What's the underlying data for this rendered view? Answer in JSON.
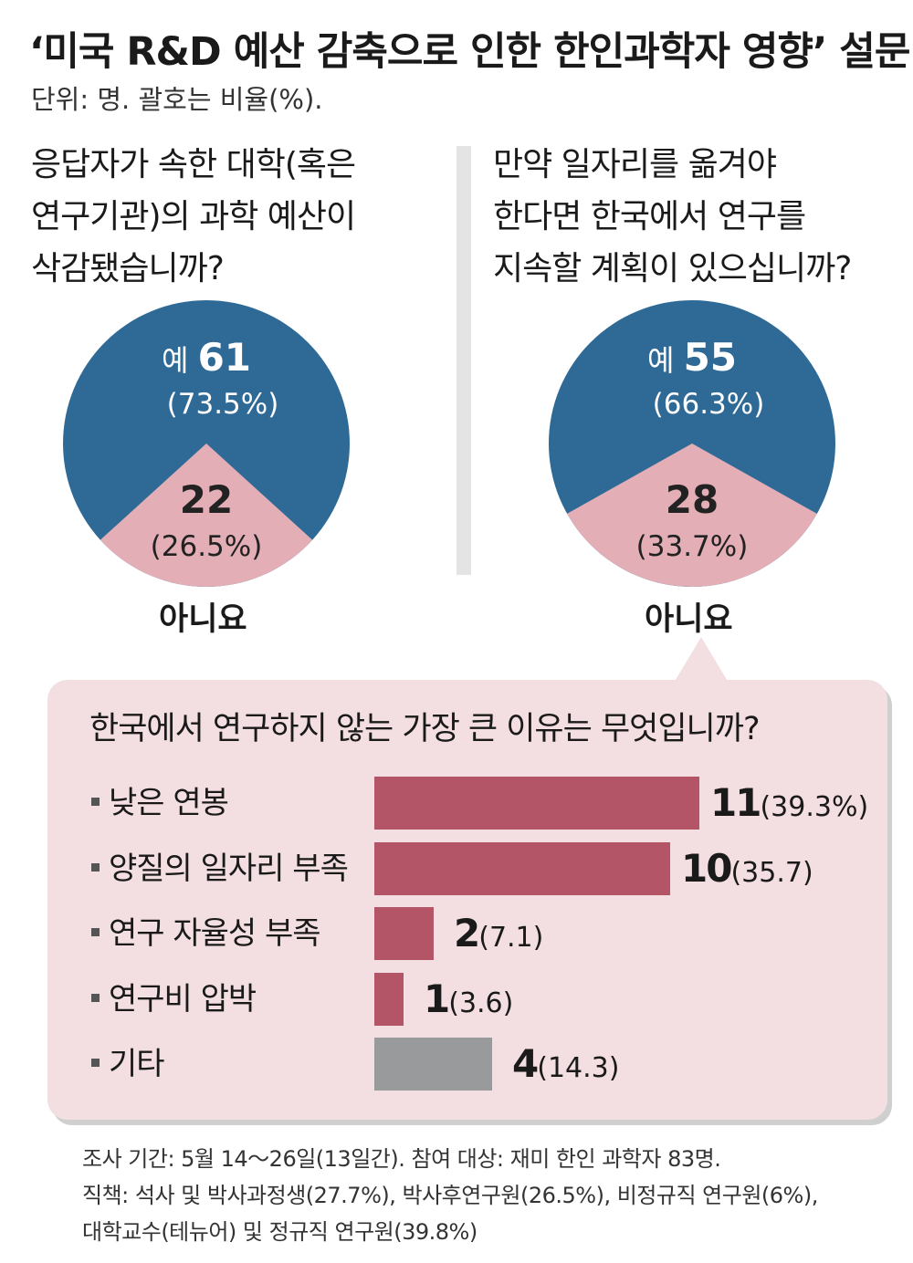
{
  "header": {
    "title": "‘미국 R&D 예산 감축으로 인한 한인과학자 영향’ 설문",
    "unit": "단위: 명. 괄호는 비율(%)."
  },
  "colors": {
    "yes": "#2f6a97",
    "no": "#e3aeb5",
    "bar": "#b35566",
    "bar_other": "#999a9c",
    "bubble": "#f3dfe1"
  },
  "chart_data": [
    {
      "type": "pie",
      "question_lines": [
        "응답자가 속한 대학(혹은",
        "연구기관)의 과학 예산이",
        "삭감됐습니까?"
      ],
      "slices": [
        {
          "label": "예",
          "count": "61",
          "pct": "(73.5%)",
          "value": 73.5
        },
        {
          "label": "아니요",
          "count": "22",
          "pct": "(26.5%)",
          "value": 26.5
        }
      ]
    },
    {
      "type": "pie",
      "question_lines": [
        "만약 일자리를 옮겨야",
        "한다면 한국에서 연구를",
        "지속할 계획이 있으십니까?"
      ],
      "slices": [
        {
          "label": "예",
          "count": "55",
          "pct": "(66.3%)",
          "value": 66.3
        },
        {
          "label": "아니요",
          "count": "28",
          "pct": "(33.7%)",
          "value": 33.7
        }
      ]
    },
    {
      "type": "bar",
      "title": "한국에서 연구하지 않는 가장 큰 이유는 무엇입니까?",
      "categories": [
        "낮은 연봉",
        "양질의 일자리 부족",
        "연구 자율성 부족",
        "연구비 압박",
        "기타"
      ],
      "values": [
        11,
        10,
        2,
        1,
        4
      ],
      "pct_labels": [
        "(39.3%)",
        "(35.7)",
        "(7.1)",
        "(3.6)",
        "(14.3)"
      ],
      "percents": [
        39.3,
        35.7,
        7.1,
        3.6,
        14.3
      ]
    }
  ],
  "footnotes": [
    "조사 기간: 5월 14～26일(13일간). 참여 대상: 재미 한인 과학자 83명.",
    "직책: 석사 및 박사과정생(27.7%), 박사후연구원(26.5%), 비정규직 연구원(6%),",
    "대학교수(테뉴어) 및 정규직 연구원(39.8%)"
  ]
}
